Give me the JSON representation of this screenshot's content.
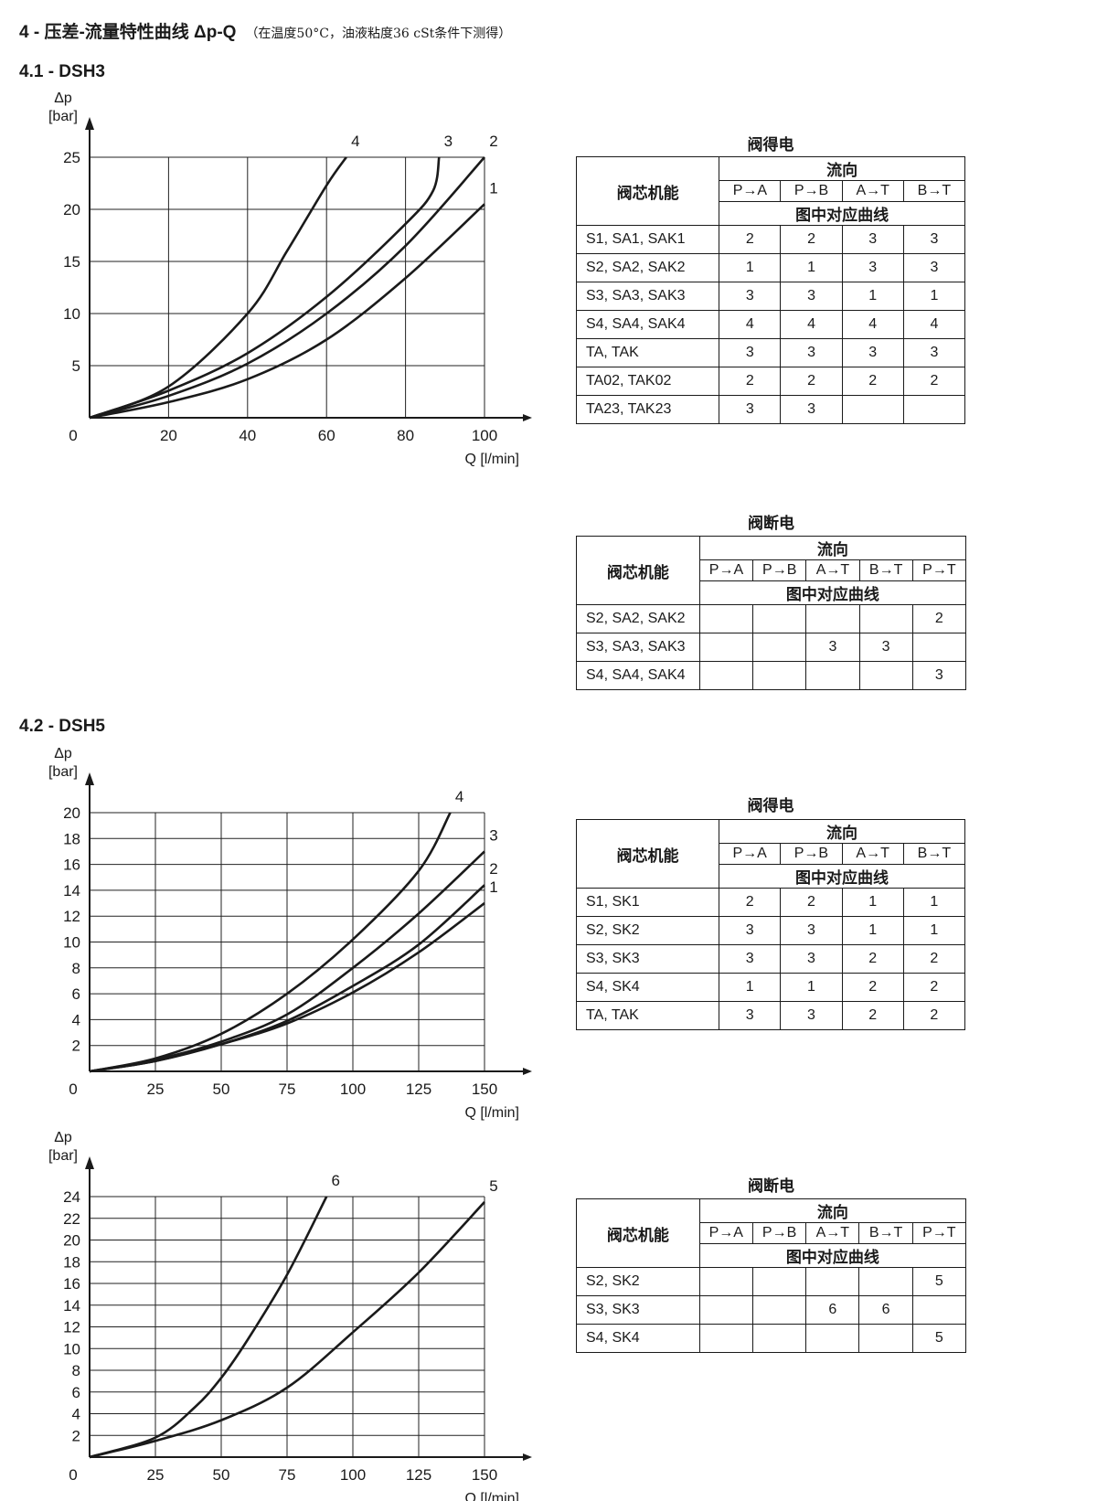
{
  "heading": {
    "title": "4 - 压差-流量特性曲线 Δp-Q",
    "note": "（在温度50°C，油液粘度36 cSt条件下测得）"
  },
  "sections": [
    {
      "title": "4.1 - DSH3"
    },
    {
      "title": "4.2 - DSH5"
    }
  ],
  "chart_data": [
    {
      "type": "line",
      "section": "4.1 - DSH3",
      "ylabel": [
        "Δp",
        "[bar]"
      ],
      "xlabel": "Q [l/min]",
      "xlim": [
        0,
        100
      ],
      "ylim": [
        0,
        25
      ],
      "x_ticks": [
        "0",
        "20",
        "40",
        "60",
        "80",
        "100"
      ],
      "y_ticks": [
        "5",
        "10",
        "15",
        "20",
        "25"
      ],
      "grid": true,
      "series": [
        {
          "name": "1",
          "points": [
            [
              0,
              0
            ],
            [
              20,
              1.5
            ],
            [
              40,
              3.7
            ],
            [
              60,
              7.5
            ],
            [
              80,
              13.4
            ],
            [
              100,
              20.5
            ]
          ]
        },
        {
          "name": "2",
          "points": [
            [
              0,
              0
            ],
            [
              20,
              2.1
            ],
            [
              40,
              5.2
            ],
            [
              60,
              10
            ],
            [
              80,
              16.5
            ],
            [
              100,
              25
            ]
          ]
        },
        {
          "name": "3",
          "points": [
            [
              0,
              0
            ],
            [
              20,
              2.6
            ],
            [
              40,
              6.2
            ],
            [
              60,
              11.6
            ],
            [
              80,
              18.6
            ],
            [
              87,
              21.8
            ],
            [
              88.5,
              25
            ]
          ]
        },
        {
          "name": "4",
          "points": [
            [
              0,
              0
            ],
            [
              20,
              3.0
            ],
            [
              40,
              10
            ],
            [
              50,
              16
            ],
            [
              60,
              22.3
            ],
            [
              65,
              25
            ]
          ]
        }
      ]
    },
    {
      "type": "line",
      "section": "4.2 - DSH5",
      "ylabel": [
        "Δp",
        "[bar]"
      ],
      "xlabel": "Q [l/min]",
      "xlim": [
        0,
        150
      ],
      "ylim": [
        0,
        20
      ],
      "x_ticks": [
        "0",
        "25",
        "50",
        "75",
        "100",
        "125",
        "150"
      ],
      "y_ticks": [
        "2",
        "4",
        "6",
        "8",
        "10",
        "12",
        "14",
        "16",
        "18",
        "20"
      ],
      "grid": true,
      "series": [
        {
          "name": "1",
          "points": [
            [
              0,
              0
            ],
            [
              25,
              0.8
            ],
            [
              50,
              2.1
            ],
            [
              75,
              3.7
            ],
            [
              100,
              6.1
            ],
            [
              125,
              9.2
            ],
            [
              150,
              13
            ]
          ]
        },
        {
          "name": "2",
          "points": [
            [
              0,
              0
            ],
            [
              25,
              0.8
            ],
            [
              50,
              2.1
            ],
            [
              75,
              3.9
            ],
            [
              100,
              6.6
            ],
            [
              125,
              9.8
            ],
            [
              150,
              14.4
            ]
          ]
        },
        {
          "name": "3",
          "points": [
            [
              0,
              0
            ],
            [
              25,
              0.9
            ],
            [
              50,
              2.3
            ],
            [
              75,
              4.4
            ],
            [
              100,
              8
            ],
            [
              125,
              12.2
            ],
            [
              150,
              17
            ]
          ]
        },
        {
          "name": "4",
          "points": [
            [
              0,
              0
            ],
            [
              25,
              1.0
            ],
            [
              50,
              2.9
            ],
            [
              75,
              6
            ],
            [
              100,
              10.2
            ],
            [
              125,
              15.5
            ],
            [
              137,
              20
            ]
          ]
        }
      ]
    },
    {
      "type": "line",
      "section": "4.2 - DSH5",
      "ylabel": [
        "Δp",
        "[bar]"
      ],
      "xlabel": "Q [l/min]",
      "xlim": [
        0,
        150
      ],
      "ylim": [
        0,
        24
      ],
      "x_ticks": [
        "0",
        "25",
        "50",
        "75",
        "100",
        "125",
        "150"
      ],
      "y_ticks": [
        "2",
        "4",
        "6",
        "8",
        "10",
        "12",
        "14",
        "16",
        "18",
        "20",
        "22",
        "24"
      ],
      "grid": true,
      "series": [
        {
          "name": "5",
          "points": [
            [
              0,
              0
            ],
            [
              25,
              1.5
            ],
            [
              50,
              3.4
            ],
            [
              75,
              6.4
            ],
            [
              100,
              11.5
            ],
            [
              125,
              17
            ],
            [
              150,
              23.5
            ]
          ]
        },
        {
          "name": "6",
          "points": [
            [
              0,
              0
            ],
            [
              25,
              1.8
            ],
            [
              40,
              4.6
            ],
            [
              50,
              7.3
            ],
            [
              60,
              10.8
            ],
            [
              75,
              16.8
            ],
            [
              90,
              24
            ]
          ]
        }
      ]
    }
  ],
  "tables": [
    {
      "caption": "阀得电",
      "function_header": "阀芯机能",
      "flow_header": "流向",
      "curve_header": "图中对应曲线",
      "columns": [
        "P→A",
        "P→B",
        "A→T",
        "B→T"
      ],
      "rows": [
        {
          "label": "S1, SA1, SAK1",
          "cells": [
            "2",
            "2",
            "3",
            "3"
          ]
        },
        {
          "label": "S2, SA2, SAK2",
          "cells": [
            "1",
            "1",
            "3",
            "3"
          ]
        },
        {
          "label": "S3, SA3, SAK3",
          "cells": [
            "3",
            "3",
            "1",
            "1"
          ]
        },
        {
          "label": "S4, SA4, SAK4",
          "cells": [
            "4",
            "4",
            "4",
            "4"
          ]
        },
        {
          "label": "TA, TAK",
          "cells": [
            "3",
            "3",
            "3",
            "3"
          ]
        },
        {
          "label": "TA02, TAK02",
          "cells": [
            "2",
            "2",
            "2",
            "2"
          ]
        },
        {
          "label": "TA23, TAK23",
          "cells": [
            "3",
            "3",
            "",
            ""
          ]
        }
      ]
    },
    {
      "caption": "阀断电",
      "function_header": "阀芯机能",
      "flow_header": "流向",
      "curve_header": "图中对应曲线",
      "columns": [
        "P→A",
        "P→B",
        "A→T",
        "B→T",
        "P→T"
      ],
      "rows": [
        {
          "label": "S2, SA2, SAK2",
          "cells": [
            "",
            "",
            "",
            "",
            "2"
          ]
        },
        {
          "label": "S3, SA3, SAK3",
          "cells": [
            "",
            "",
            "3",
            "3",
            ""
          ]
        },
        {
          "label": "S4, SA4, SAK4",
          "cells": [
            "",
            "",
            "",
            "",
            "3"
          ]
        }
      ]
    },
    {
      "caption": "阀得电",
      "function_header": "阀芯机能",
      "flow_header": "流向",
      "curve_header": "图中对应曲线",
      "columns": [
        "P→A",
        "P→B",
        "A→T",
        "B→T"
      ],
      "rows": [
        {
          "label": "S1, SK1",
          "cells": [
            "2",
            "2",
            "1",
            "1"
          ]
        },
        {
          "label": "S2, SK2",
          "cells": [
            "3",
            "3",
            "1",
            "1"
          ]
        },
        {
          "label": "S3, SK3",
          "cells": [
            "3",
            "3",
            "2",
            "2"
          ]
        },
        {
          "label": "S4, SK4",
          "cells": [
            "1",
            "1",
            "2",
            "2"
          ]
        },
        {
          "label": "TA, TAK",
          "cells": [
            "3",
            "3",
            "2",
            "2"
          ]
        }
      ]
    },
    {
      "caption": "阀断电",
      "function_header": "阀芯机能",
      "flow_header": "流向",
      "curve_header": "图中对应曲线",
      "columns": [
        "P→A",
        "P→B",
        "A→T",
        "B→T",
        "P→T"
      ],
      "rows": [
        {
          "label": "S2, SK2",
          "cells": [
            "",
            "",
            "",
            "",
            "5"
          ]
        },
        {
          "label": "S3, SK3",
          "cells": [
            "",
            "",
            "6",
            "6",
            ""
          ]
        },
        {
          "label": "S4, SK4",
          "cells": [
            "",
            "",
            "",
            "",
            "5"
          ]
        }
      ]
    }
  ]
}
